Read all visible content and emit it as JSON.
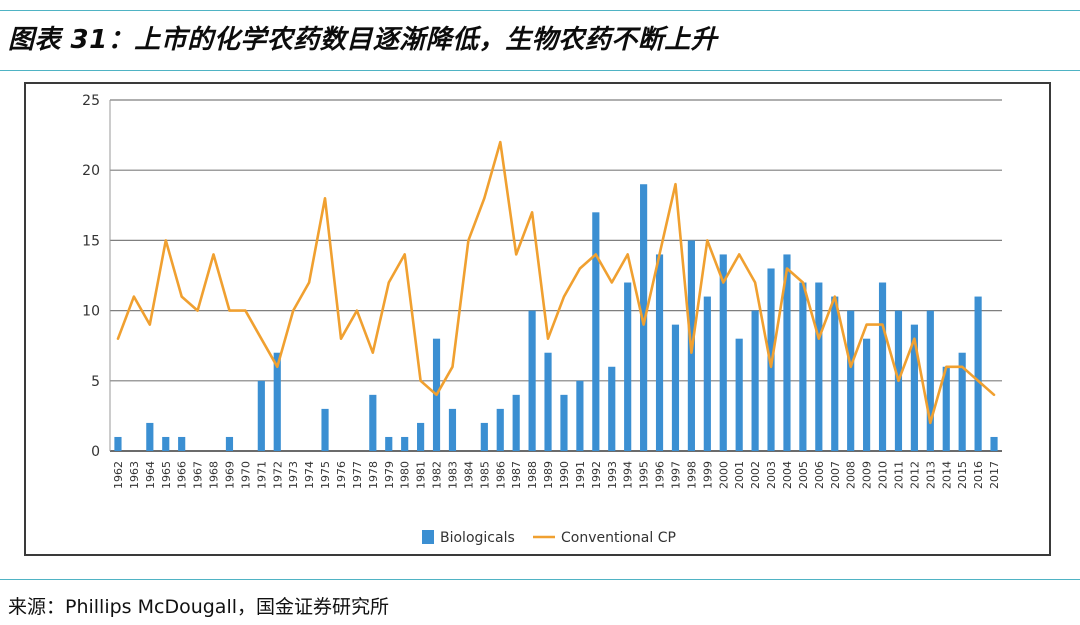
{
  "header": {
    "title": "图表 31：上市的化学农药数目逐渐降低，生物农药不断上升"
  },
  "footer": {
    "source": "来源：Phillips McDougall，国金证券研究所"
  },
  "colors": {
    "biologicals": "#3b8fd2",
    "conventional": "#f0a030",
    "rule": "#4fb3c4",
    "grid": "#7f7f7f"
  },
  "chart_data": {
    "type": "bar",
    "title": "",
    "xlabel": "",
    "ylabel": "",
    "ylim": [
      0,
      25
    ],
    "yticks": [
      "0",
      "5",
      "10",
      "15",
      "20",
      "25"
    ],
    "grid": true,
    "legend": "bottom-center",
    "categories": [
      "1962",
      "1963",
      "1964",
      "1965",
      "1966",
      "1967",
      "1968",
      "1969",
      "1970",
      "1971",
      "1972",
      "1973",
      "1974",
      "1975",
      "1976",
      "1977",
      "1978",
      "1979",
      "1980",
      "1981",
      "1982",
      "1983",
      "1984",
      "1985",
      "1986",
      "1987",
      "1988",
      "1989",
      "1990",
      "1991",
      "1992",
      "1993",
      "1994",
      "1995",
      "1996",
      "1997",
      "1998",
      "1999",
      "2000",
      "2001",
      "2002",
      "2003",
      "2004",
      "2005",
      "2006",
      "2007",
      "2008",
      "2009",
      "2010",
      "2011",
      "2012",
      "2013",
      "2014",
      "2015",
      "2016",
      "2017"
    ],
    "series": [
      {
        "name": "Biologicals",
        "type": "bar",
        "values": [
          1,
          0,
          2,
          1,
          1,
          0,
          0,
          1,
          0,
          5,
          7,
          0,
          0,
          3,
          0,
          0,
          4,
          1,
          1,
          2,
          8,
          3,
          0,
          2,
          3,
          4,
          10,
          7,
          4,
          5,
          17,
          6,
          12,
          19,
          14,
          9,
          15,
          11,
          14,
          8,
          10,
          13,
          14,
          12,
          12,
          11,
          10,
          8,
          12,
          10,
          9,
          10,
          6,
          7,
          11,
          1
        ]
      },
      {
        "name": "Conventional CP",
        "type": "line",
        "values": [
          8,
          11,
          9,
          15,
          11,
          10,
          14,
          10,
          10,
          8,
          6,
          10,
          12,
          18,
          8,
          10,
          7,
          12,
          14,
          5,
          4,
          6,
          15,
          18,
          22,
          14,
          17,
          8,
          11,
          13,
          14,
          12,
          14,
          9,
          14,
          19,
          7,
          15,
          12,
          14,
          12,
          6,
          13,
          12,
          8,
          11,
          6,
          9,
          9,
          5,
          8,
          2,
          6,
          6,
          5,
          4
        ]
      }
    ]
  }
}
